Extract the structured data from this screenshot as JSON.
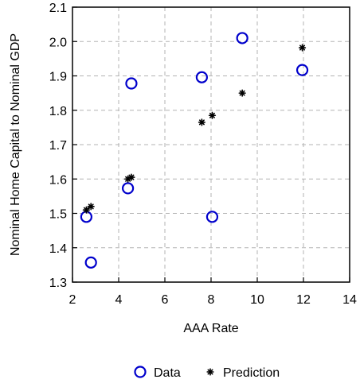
{
  "chart_data": {
    "type": "scatter",
    "title": "",
    "xlabel": "AAA Rate",
    "ylabel": "Nominal Home Capital to Nominal GDP",
    "xlim": [
      2,
      14
    ],
    "ylim": [
      1.3,
      2.1
    ],
    "x_ticks": [
      "2",
      "4",
      "6",
      "8",
      "10",
      "12",
      "14"
    ],
    "y_ticks": [
      "1.3",
      "1.4",
      "1.5",
      "1.6",
      "1.7",
      "1.8",
      "1.9",
      "2.0",
      "2.1"
    ],
    "grid": true,
    "legend_position": "bottom",
    "series": [
      {
        "name": "Data",
        "marker": "circle",
        "color": "#0000cc",
        "points": [
          {
            "x": 2.6,
            "y": 1.49
          },
          {
            "x": 2.8,
            "y": 1.357
          },
          {
            "x": 4.4,
            "y": 1.573
          },
          {
            "x": 4.55,
            "y": 1.878
          },
          {
            "x": 7.6,
            "y": 1.896
          },
          {
            "x": 8.05,
            "y": 1.49
          },
          {
            "x": 9.35,
            "y": 2.01
          },
          {
            "x": 11.95,
            "y": 1.917
          }
        ]
      },
      {
        "name": "Prediction",
        "marker": "asterisk",
        "color": "#000000",
        "points": [
          {
            "x": 2.6,
            "y": 1.51
          },
          {
            "x": 2.8,
            "y": 1.52
          },
          {
            "x": 4.4,
            "y": 1.6
          },
          {
            "x": 4.55,
            "y": 1.605
          },
          {
            "x": 7.6,
            "y": 1.765
          },
          {
            "x": 8.05,
            "y": 1.785
          },
          {
            "x": 9.35,
            "y": 1.85
          },
          {
            "x": 11.95,
            "y": 1.982
          }
        ]
      }
    ]
  }
}
